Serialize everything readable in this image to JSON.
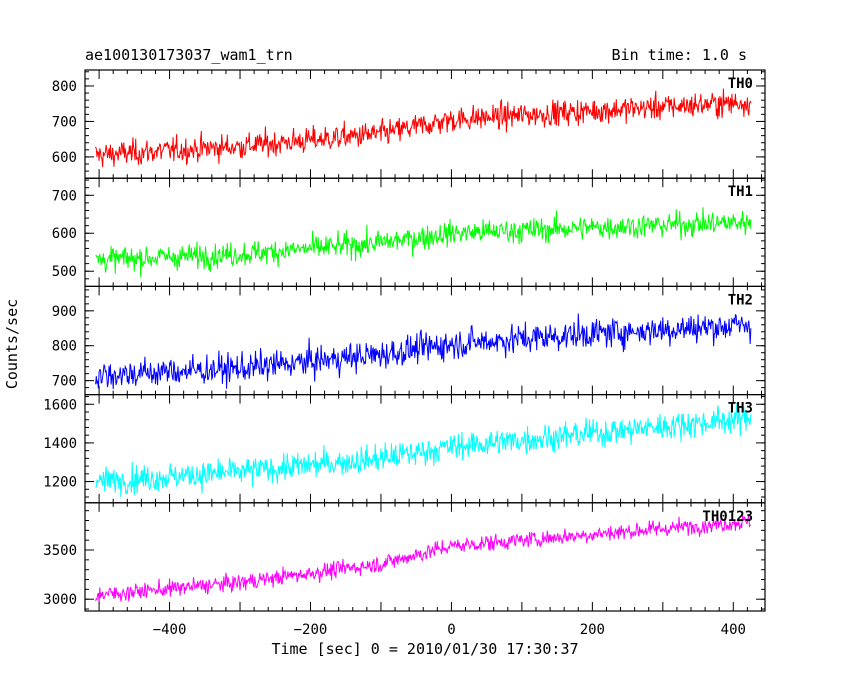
{
  "chart_data": {
    "type": "line",
    "title": "ae100130173037_wam1_trn",
    "subtitle": "Bin time: 1.0 s",
    "xlabel": "Time [sec] 0 = 2010/01/30 17:30:37",
    "ylabel": "Counts/sec",
    "xlim": [
      -520,
      445
    ],
    "x_range": [
      -505,
      425
    ],
    "x_ticks": [
      -400,
      -200,
      0,
      200,
      400
    ],
    "x_tick_labels": [
      "−400",
      "−200",
      "0",
      "200",
      "400"
    ],
    "grid": false,
    "panels": [
      {
        "name": "TH0",
        "color": "#ff0000",
        "ylim": [
          540,
          845
        ],
        "y_ticks": [
          600,
          700,
          800
        ],
        "y_tick_labels": [
          "600",
          "700",
          "800"
        ],
        "trend": [
          [
            -505,
            605
          ],
          [
            -300,
            630
          ],
          [
            -100,
            665
          ],
          [
            0,
            705
          ],
          [
            200,
            730
          ],
          [
            425,
            755
          ]
        ],
        "noise": 28
      },
      {
        "name": "TH1",
        "color": "#00ff00",
        "ylim": [
          460,
          745
        ],
        "y_ticks": [
          500,
          600,
          700
        ],
        "y_tick_labels": [
          "500",
          "600",
          "700"
        ],
        "trend": [
          [
            -505,
            530
          ],
          [
            -300,
            545
          ],
          [
            -100,
            575
          ],
          [
            0,
            600
          ],
          [
            200,
            615
          ],
          [
            425,
            630
          ]
        ],
        "noise": 25
      },
      {
        "name": "TH2",
        "color": "#0000ff",
        "ylim": [
          660,
          970
        ],
        "y_ticks": [
          700,
          800,
          900
        ],
        "y_tick_labels": [
          "700",
          "800",
          "900"
        ],
        "trend": [
          [
            -505,
            715
          ],
          [
            -300,
            735
          ],
          [
            -100,
            775
          ],
          [
            0,
            805
          ],
          [
            200,
            835
          ],
          [
            425,
            860
          ]
        ],
        "noise": 33
      },
      {
        "name": "TH3",
        "color": "#00ffff",
        "ylim": [
          1090,
          1650
        ],
        "y_ticks": [
          1200,
          1400,
          1600
        ],
        "y_tick_labels": [
          "1200",
          "1400",
          "1600"
        ],
        "trend": [
          [
            -505,
            1200
          ],
          [
            -300,
            1250
          ],
          [
            -100,
            1320
          ],
          [
            0,
            1380
          ],
          [
            200,
            1450
          ],
          [
            425,
            1530
          ]
        ],
        "noise": 55
      },
      {
        "name": "TH0123",
        "color": "#ff00ff",
        "ylim": [
          2880,
          3980
        ],
        "y_ticks": [
          3000,
          3500
        ],
        "y_tick_labels": [
          "3000",
          "3500"
        ],
        "trend": [
          [
            -505,
            3040
          ],
          [
            -300,
            3170
          ],
          [
            -100,
            3360
          ],
          [
            0,
            3540
          ],
          [
            200,
            3660
          ],
          [
            425,
            3790
          ]
        ],
        "noise": 65
      }
    ]
  }
}
